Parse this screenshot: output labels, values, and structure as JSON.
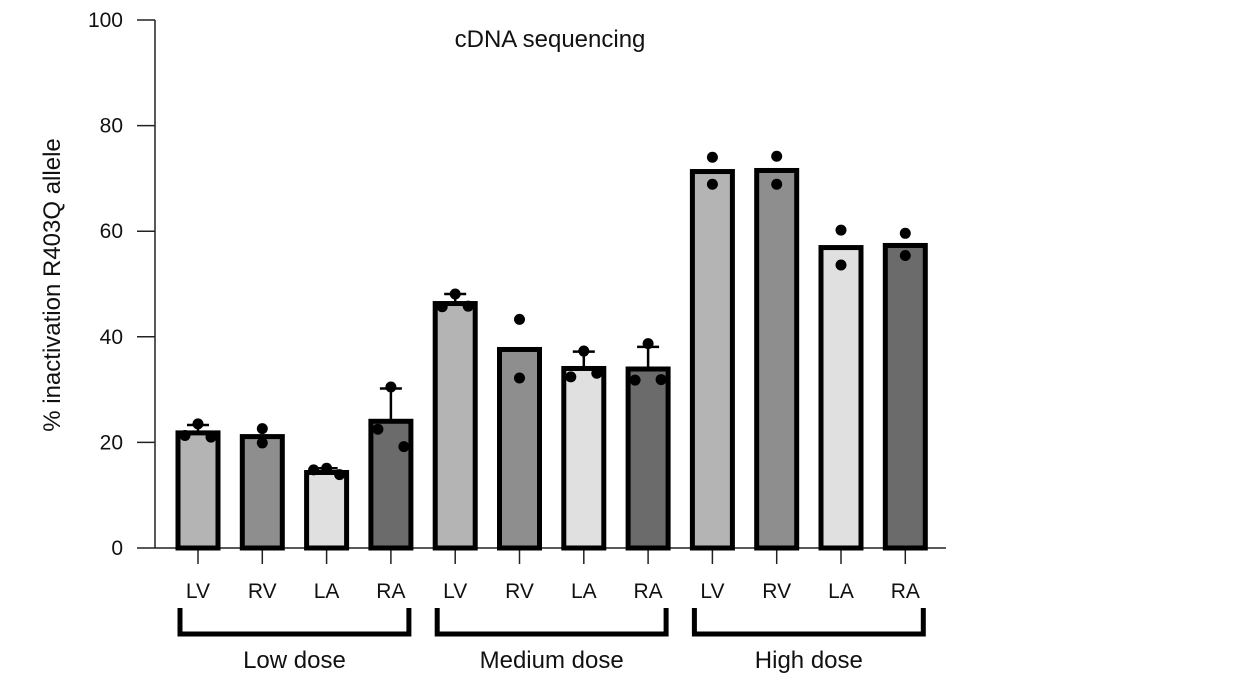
{
  "chart_data": {
    "type": "bar",
    "title": "cDNA sequencing",
    "xlabel": "",
    "ylabel": "% inactivation R403Q allele",
    "ylim": [
      0,
      100
    ],
    "yticks": [
      "0",
      "20",
      "40",
      "60",
      "80",
      "100"
    ],
    "grid": false,
    "groups": [
      {
        "label": "Low dose",
        "bars": [
          {
            "category": "LV",
            "value": 21.8,
            "error": 1.5,
            "points": [
              23.5,
              21.3,
              21.0
            ],
            "color": "#b4b4b4"
          },
          {
            "category": "RV",
            "value": 21.1,
            "error": 0,
            "points": [
              22.6,
              19.9
            ],
            "color": "#8e8e8e"
          },
          {
            "category": "LA",
            "value": 14.3,
            "error": 0.8,
            "points": [
              15.1,
              14.8,
              13.9
            ],
            "color": "#e0e0e0"
          },
          {
            "category": "RA",
            "value": 24.0,
            "error": 6.2,
            "points": [
              30.5,
              22.5,
              19.2
            ],
            "color": "#6b6b6b"
          }
        ]
      },
      {
        "label": "Medium dose",
        "bars": [
          {
            "category": "LV",
            "value": 46.3,
            "error": 1.8,
            "points": [
              48.1,
              45.7,
              45.8
            ],
            "color": "#b4b4b4"
          },
          {
            "category": "RV",
            "value": 37.6,
            "error": 0,
            "points": [
              43.3,
              32.2
            ],
            "color": "#8e8e8e"
          },
          {
            "category": "LA",
            "value": 34.0,
            "error": 3.2,
            "points": [
              37.3,
              32.4,
              33.1
            ],
            "color": "#e0e0e0"
          },
          {
            "category": "RA",
            "value": 33.9,
            "error": 4.2,
            "points": [
              38.7,
              31.8,
              31.9
            ],
            "color": "#6b6b6b"
          }
        ]
      },
      {
        "label": "High dose",
        "bars": [
          {
            "category": "LV",
            "value": 71.3,
            "error": 0,
            "points": [
              74.0,
              68.9
            ],
            "color": "#b4b4b4"
          },
          {
            "category": "RV",
            "value": 71.5,
            "error": 0,
            "points": [
              74.2,
              68.9
            ],
            "color": "#8e8e8e"
          },
          {
            "category": "LA",
            "value": 56.9,
            "error": 0,
            "points": [
              60.2,
              53.6
            ],
            "color": "#e0e0e0"
          },
          {
            "category": "RA",
            "value": 57.3,
            "error": 0,
            "points": [
              59.6,
              55.4
            ],
            "color": "#6b6b6b"
          }
        ]
      }
    ]
  }
}
